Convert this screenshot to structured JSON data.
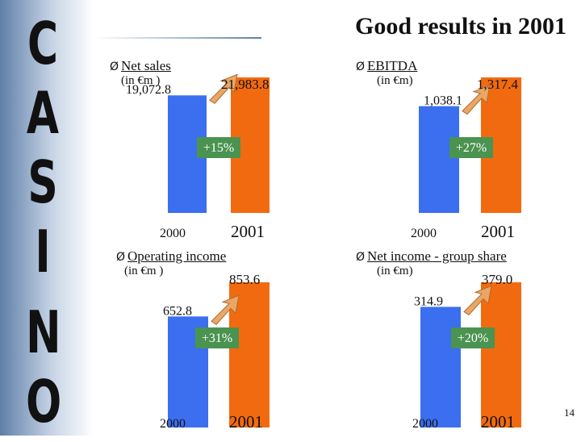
{
  "brand": {
    "letters": [
      "C",
      "A",
      "S",
      "I",
      "N",
      "O"
    ]
  },
  "title": "Good results in 2001",
  "page_number": "14",
  "colors": {
    "bar_2000": "#3c6ef0",
    "bar_2001": "#f26a10",
    "growth_badge": "#4a9350",
    "growth_arrow": "#e9a766"
  },
  "panels": [
    {
      "bullet": "Ø",
      "label": "Net sales",
      "unit": "(in €m )"
    },
    {
      "bullet": "Ø",
      "label": "EBITDA",
      "unit": "(in €m)"
    },
    {
      "bullet": "Ø",
      "label": "Operating income",
      "unit": "(in €m )"
    },
    {
      "bullet": "Ø",
      "label": "Net income - group share",
      "unit": "(in €m)"
    }
  ],
  "chart_data": [
    {
      "type": "bar",
      "title": "Net sales",
      "categories": [
        "2000",
        "2001"
      ],
      "values": [
        19072.8,
        21983.8
      ],
      "value_labels": [
        "19,072.8",
        "21,983.8"
      ],
      "growth": "+15%"
    },
    {
      "type": "bar",
      "title": "EBITDA",
      "categories": [
        "2000",
        "2001"
      ],
      "values": [
        1038.1,
        1317.4
      ],
      "value_labels": [
        "1,038.1",
        "1,317.4"
      ],
      "growth": "+27%"
    },
    {
      "type": "bar",
      "title": "Operating income",
      "categories": [
        "2000",
        "2001"
      ],
      "values": [
        652.8,
        853.6
      ],
      "value_labels": [
        "652.8",
        "853.6"
      ],
      "growth": "+31%"
    },
    {
      "type": "bar",
      "title": "Net income - group share",
      "categories": [
        "2000",
        "2001"
      ],
      "values": [
        314.9,
        379.0
      ],
      "value_labels": [
        "314.9",
        "379.0"
      ],
      "growth": "+20%"
    }
  ]
}
